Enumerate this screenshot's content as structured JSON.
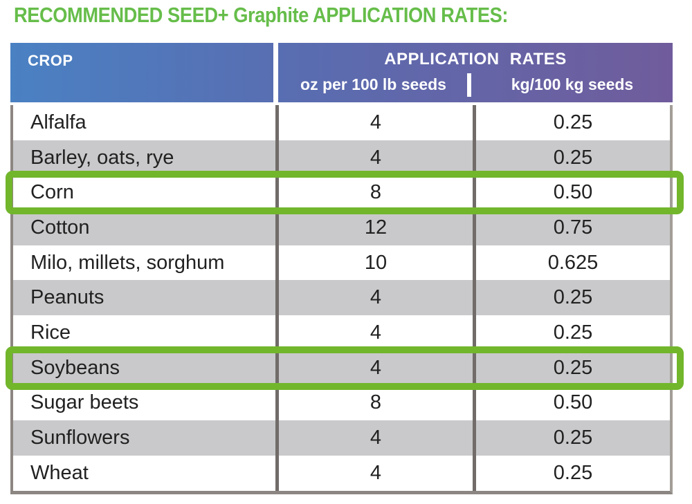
{
  "title": "RECOMMENDED SEED+ Graphite APPLICATION RATES:",
  "colors": {
    "title_green": "#66bd4a",
    "highlight_green": "#72b62c",
    "header_gradient_left": "#4a81c3",
    "header_gradient_right": "#705c9c",
    "row_gray": "#c9c9cb"
  },
  "table": {
    "crop_header": "CROP",
    "rates_group_header": "APPLICATION RATES",
    "subheader_oz": "oz per 100 lb seeds",
    "subheader_kg": "kg/100 kg seeds",
    "rows": [
      {
        "crop": "Alfalfa",
        "oz": "4",
        "kg": "0.25",
        "highlight": false
      },
      {
        "crop": "Barley, oats, rye",
        "oz": "4",
        "kg": "0.25",
        "highlight": false
      },
      {
        "crop": "Corn",
        "oz": "8",
        "kg": "0.50",
        "highlight": true
      },
      {
        "crop": "Cotton",
        "oz": "12",
        "kg": "0.75",
        "highlight": false
      },
      {
        "crop": "Milo, millets, sorghum",
        "oz": "10",
        "kg": "0.625",
        "highlight": false
      },
      {
        "crop": "Peanuts",
        "oz": "4",
        "kg": "0.25",
        "highlight": false
      },
      {
        "crop": "Rice",
        "oz": "4",
        "kg": "0.25",
        "highlight": false
      },
      {
        "crop": "Soybeans",
        "oz": "4",
        "kg": "0.25",
        "highlight": true
      },
      {
        "crop": "Sugar beets",
        "oz": "8",
        "kg": "0.50",
        "highlight": false
      },
      {
        "crop": "Sunflowers",
        "oz": "4",
        "kg": "0.25",
        "highlight": false
      },
      {
        "crop": "Wheat",
        "oz": "4",
        "kg": "0.25",
        "highlight": false
      }
    ]
  }
}
